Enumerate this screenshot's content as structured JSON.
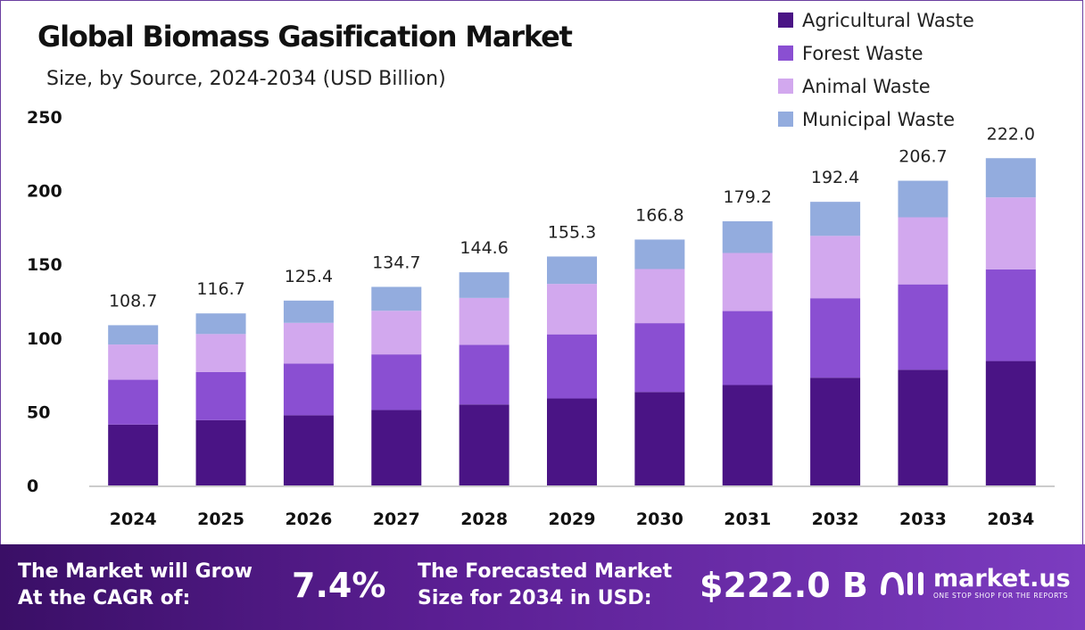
{
  "chart_data": {
    "type": "bar",
    "stacked": true,
    "title": "Global Biomass Gasification Market",
    "subtitle": "Size, by Source, 2024-2034 (USD Billion)",
    "categories": [
      "2024",
      "2025",
      "2026",
      "2027",
      "2028",
      "2029",
      "2030",
      "2031",
      "2032",
      "2033",
      "2034"
    ],
    "series": [
      {
        "name": "Agricultural Waste",
        "color": "#4a1485",
        "values": [
          41.3,
          44.3,
          47.6,
          51.2,
          54.9,
          59.0,
          63.4,
          68.1,
          73.1,
          78.5,
          84.4
        ]
      },
      {
        "name": "Forest Waste",
        "color": "#8a4fd2",
        "values": [
          30.4,
          32.7,
          35.1,
          37.7,
          40.5,
          43.5,
          46.7,
          50.2,
          53.9,
          57.9,
          62.2
        ]
      },
      {
        "name": "Animal Waste",
        "color": "#d2a8ee",
        "values": [
          23.9,
          25.7,
          27.6,
          29.6,
          31.8,
          34.2,
          36.7,
          39.4,
          42.3,
          45.5,
          48.8
        ]
      },
      {
        "name": "Municipal Waste",
        "color": "#93acde",
        "values": [
          13.1,
          14.0,
          15.1,
          16.2,
          17.4,
          18.6,
          20.0,
          21.5,
          23.1,
          24.8,
          26.6
        ]
      }
    ],
    "totals": [
      "108.7",
      "116.7",
      "125.4",
      "134.7",
      "144.6",
      "155.3",
      "166.8",
      "179.2",
      "192.4",
      "206.7",
      "222.0"
    ],
    "ylim": [
      0,
      250
    ],
    "yticks": [
      0,
      50,
      100,
      150,
      200,
      250
    ],
    "xlabel": "",
    "ylabel": "",
    "grid": false,
    "legend_position": "top-right"
  },
  "footer": {
    "cagr_line1": "The Market will Grow",
    "cagr_line2": "At the CAGR of:",
    "cagr_value": "7.4%",
    "forecast_line1": "The Forecasted Market",
    "forecast_line2": "Size for 2034 in USD:",
    "forecast_value": "$222.0 B",
    "logo_name": "market.us",
    "logo_tagline": "ONE STOP SHOP FOR THE REPORTS",
    "logo_icon": "market-us-logo-icon"
  }
}
